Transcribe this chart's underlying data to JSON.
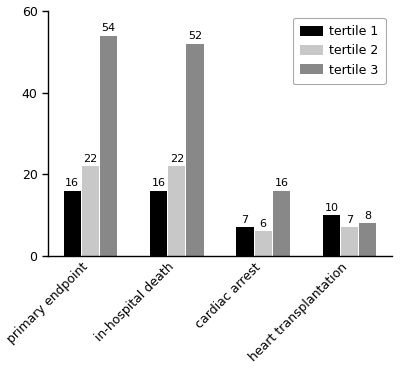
{
  "categories": [
    "primary endpoint",
    "in-hospital death",
    "cardiac arrest",
    "heart transplantation"
  ],
  "tertile1_values": [
    16,
    16,
    7,
    10
  ],
  "tertile2_values": [
    22,
    22,
    6,
    7
  ],
  "tertile3_values": [
    54,
    52,
    16,
    8
  ],
  "tertile1_color": "#000000",
  "tertile2_color": "#c8c8c8",
  "tertile3_color": "#888888",
  "legend_labels": [
    "tertile 1",
    "tertile 2",
    "tertile 3"
  ],
  "ylim": [
    0,
    60
  ],
  "yticks": [
    0,
    20,
    40,
    60
  ],
  "bar_width": 0.2,
  "bar_gap": 0.01,
  "tick_label_fontsize": 9,
  "value_fontsize": 8,
  "legend_fontsize": 9,
  "background_color": "#ffffff"
}
